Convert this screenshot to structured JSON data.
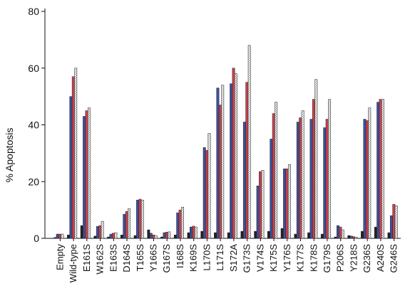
{
  "chart_data": {
    "type": "bar",
    "title": "",
    "xlabel": "",
    "ylabel": "% Apoptosis",
    "ylim": [
      0,
      80
    ],
    "yticks": [
      "0",
      "20",
      "40",
      "60",
      "80"
    ],
    "grid": false,
    "legend": "none",
    "categories": [
      "Empty",
      "Wild-type",
      "E161S",
      "W162S",
      "E163S",
      "D164S",
      "T165S",
      "Y166S",
      "G167S",
      "I168S",
      "K169S",
      "L170S",
      "L171S",
      "S172A",
      "G173S",
      "V174S",
      "K175S",
      "Y176S",
      "K177S",
      "K178S",
      "G179S",
      "P206S",
      "Y218S",
      "G236S",
      "A240S",
      "G246S"
    ],
    "series": [
      {
        "color": "#222222",
        "values": [
          0.3,
          1.2,
          4.5,
          0.8,
          0.5,
          1.2,
          1.0,
          3.0,
          0.5,
          1.2,
          2.0,
          2.5,
          2.0,
          2.0,
          2.5,
          2.5,
          2.5,
          3.5,
          1.5,
          2.0,
          1.5,
          0.5,
          1.0,
          2.5,
          4.0,
          2.0
        ]
      },
      {
        "color": "#3d4f9e",
        "values": [
          1.5,
          50,
          43,
          4.2,
          1.5,
          8.5,
          13.5,
          1.8,
          2.0,
          9.0,
          4.0,
          32,
          53,
          54.5,
          41,
          18.5,
          35,
          24.5,
          41,
          42,
          39,
          4.5,
          0.8,
          42,
          48,
          8.0
        ]
      },
      {
        "color": "#c8414c",
        "values": [
          1.5,
          57,
          45,
          4.5,
          1.8,
          9.5,
          13.8,
          1.2,
          2.2,
          10.0,
          4.3,
          31,
          47,
          60,
          55,
          23.5,
          44,
          24.5,
          42.5,
          49,
          42,
          4.0,
          0.6,
          41.5,
          49,
          12.0
        ]
      },
      {
        "color": "#dcdcdc",
        "values": [
          1.5,
          60,
          46,
          6.0,
          2.0,
          10.5,
          13.5,
          1.0,
          2.3,
          11.0,
          4.0,
          37,
          54,
          58,
          68,
          24,
          48,
          26,
          45,
          56,
          49,
          3.0,
          0.4,
          46,
          49,
          11.5
        ]
      }
    ]
  }
}
